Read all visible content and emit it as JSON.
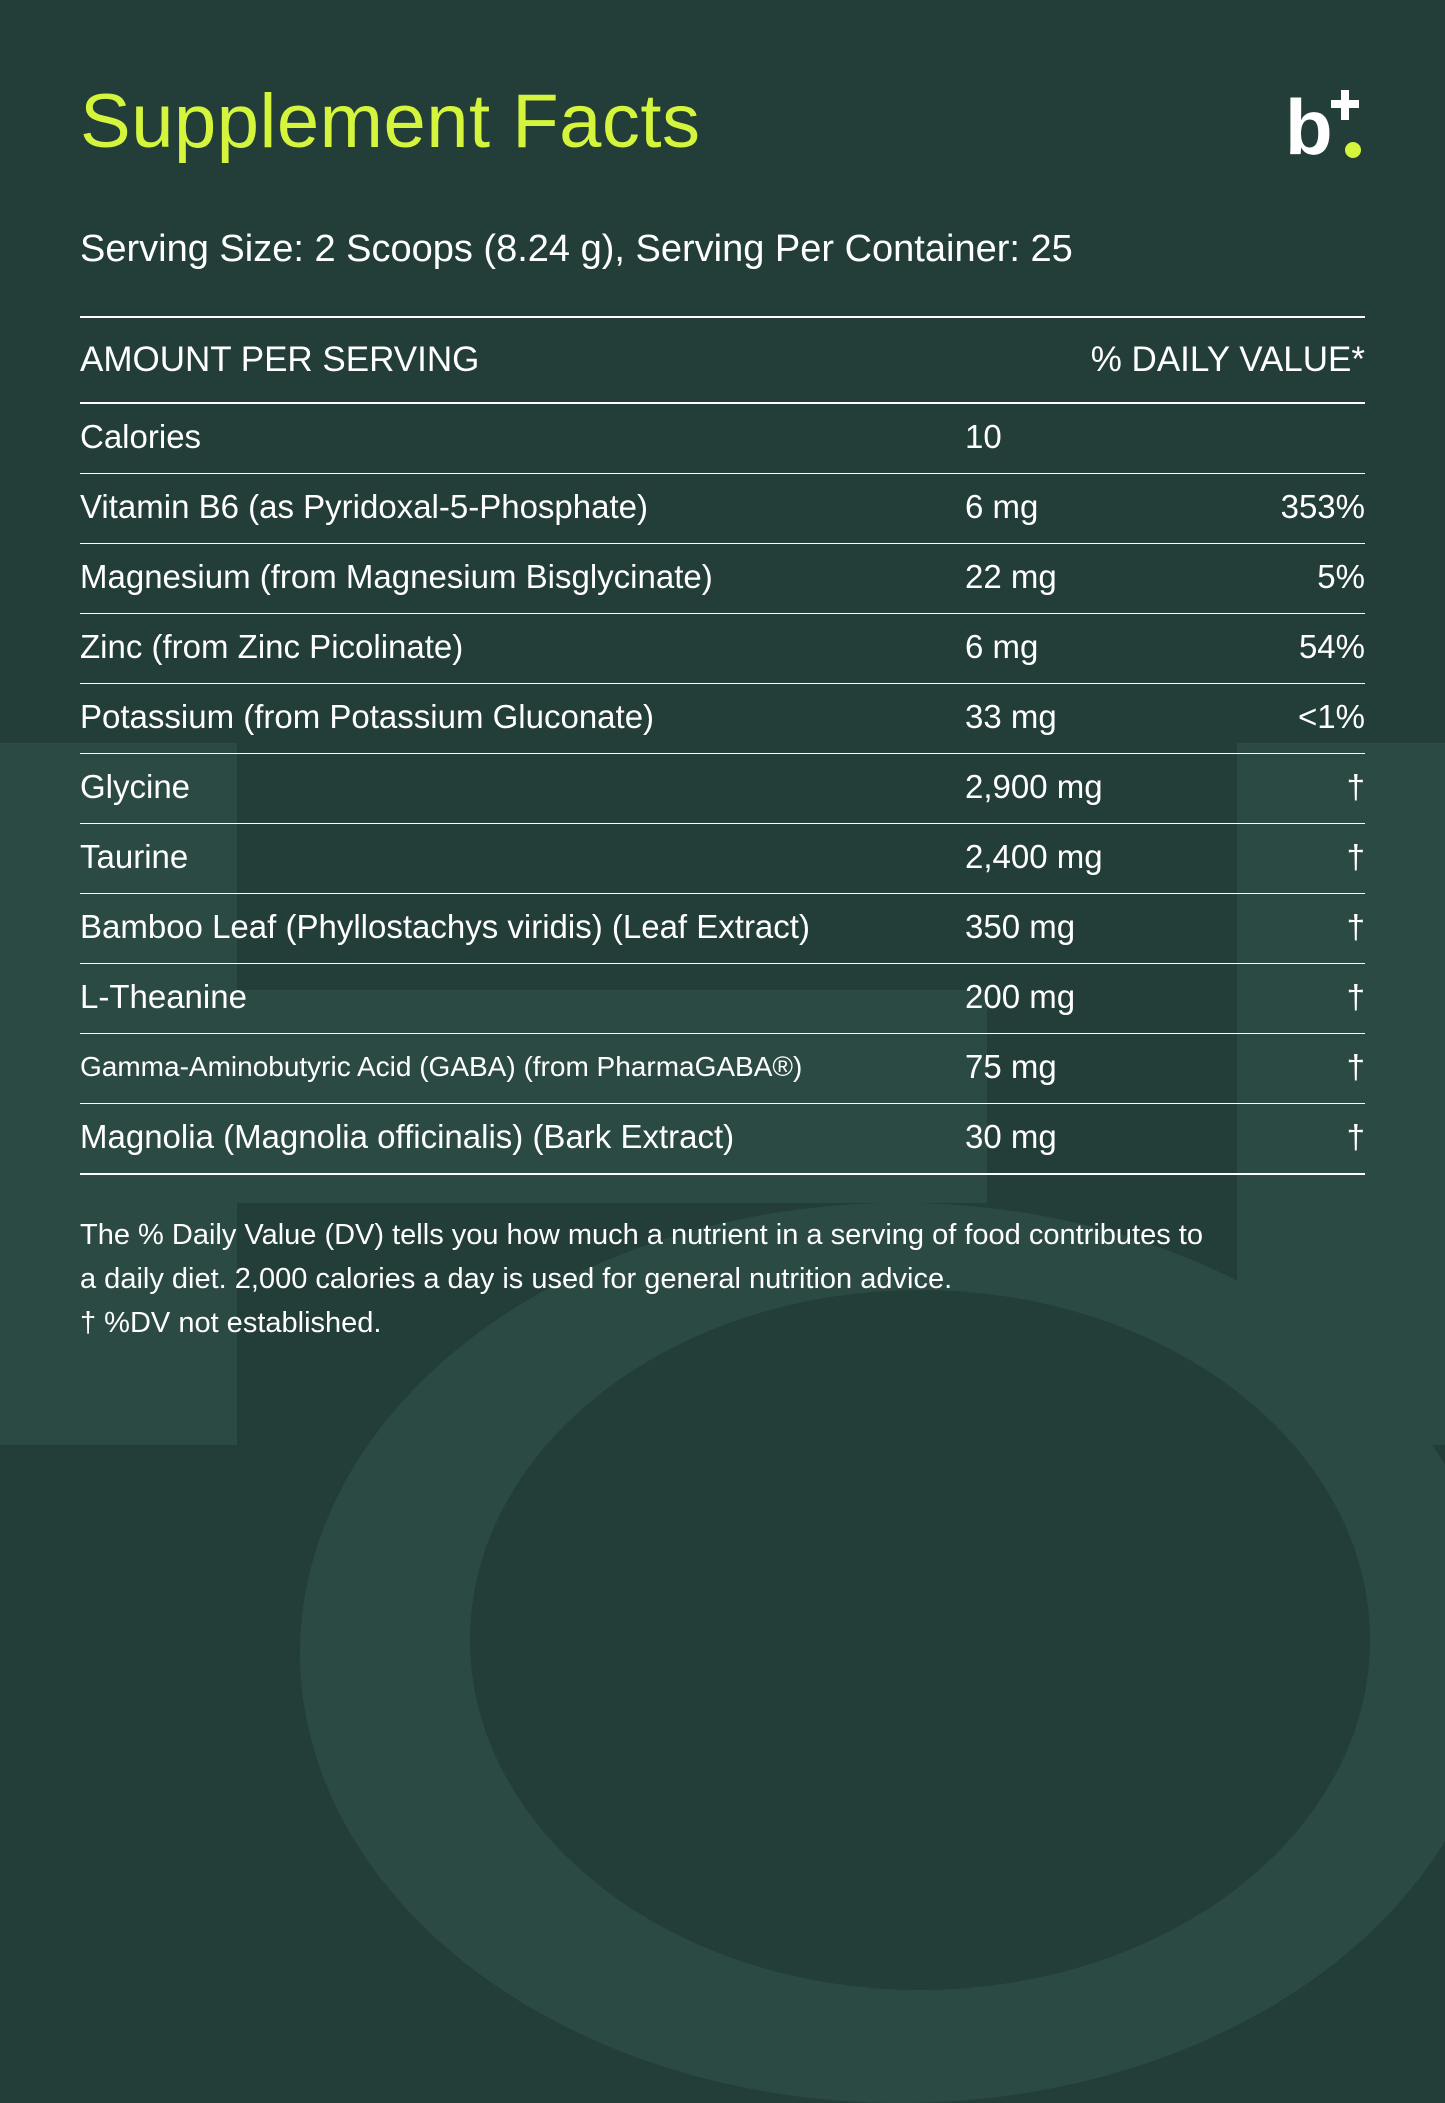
{
  "title": "Supplement Facts",
  "logo": {
    "icon": "brand-logo-icon",
    "text": "b",
    "accent_color": "#d4f53c"
  },
  "serving": "Serving Size: 2 Scoops (8.24 g), Serving Per Container: 25",
  "table": {
    "header_left": "AMOUNT PER SERVING",
    "header_right": "% DAILY VALUE*",
    "rows": [
      {
        "name": "Calories",
        "amount": "10",
        "dv": ""
      },
      {
        "name": "Vitamin B6 (as Pyridoxal-5-Phosphate)",
        "amount": "6 mg",
        "dv": "353%"
      },
      {
        "name": "Magnesium (from Magnesium Bisglycinate)",
        "amount": "22 mg",
        "dv": "5%"
      },
      {
        "name": "Zinc (from Zinc Picolinate)",
        "amount": "6 mg",
        "dv": "54%"
      },
      {
        "name": "Potassium (from Potassium Gluconate)",
        "amount": "33 mg",
        "dv": "<1%"
      },
      {
        "name": "Glycine",
        "amount": "2,900 mg",
        "dv": "†"
      },
      {
        "name": "Taurine",
        "amount": "2,400 mg",
        "dv": "†"
      },
      {
        "name": "Bamboo Leaf (Phyllostachys viridis) (Leaf Extract)",
        "amount": "350 mg",
        "dv": "†"
      },
      {
        "name": "L-Theanine",
        "amount": "200 mg",
        "dv": "†"
      },
      {
        "name": "Gamma-Aminobutyric Acid (GABA) (from PharmaGABA®)",
        "amount": "75 mg",
        "dv": "†"
      },
      {
        "name": "Magnolia (Magnolia officinalis) (Bark Extract)",
        "amount": "30 mg",
        "dv": "†"
      }
    ]
  },
  "footnote": {
    "line1": "The % Daily Value (DV) tells you how much a nutrient in a serving of food contributes to",
    "line2": "a daily diet. 2,000 calories a day is used for general nutrition advice.",
    "line3": " † %DV not established."
  },
  "colors": {
    "background": "#233d39",
    "background_shape": "#2c4a44",
    "title": "#d4f53c",
    "text": "#ffffff"
  }
}
